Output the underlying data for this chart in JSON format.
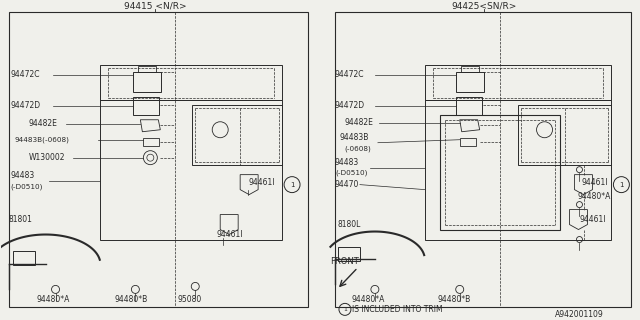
{
  "bg_color": "#f0f0eb",
  "line_color": "#2a2a2a",
  "title_left": "94415 <N/R>",
  "title_right": "94425<SN/R>",
  "footer_ref": "A942001109",
  "note": "IS INCLUDED INTO TRIM",
  "front_label": "FRONT"
}
